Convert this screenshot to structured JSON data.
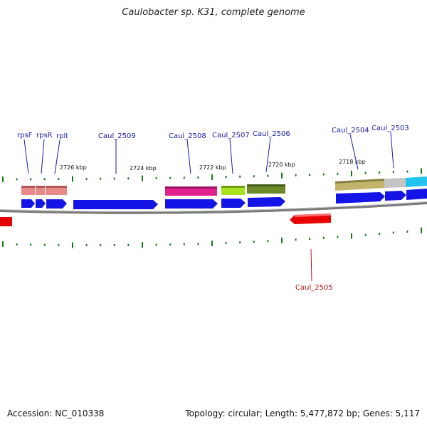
{
  "title": "Caulobacter sp. K31, complete genome",
  "footer": {
    "accession": "Accession: NC_010338",
    "summary": "Topology: circular; Length: 5,477,872 bp; Genes: 5,117"
  },
  "colors": {
    "cds": "#1414e6",
    "reverse_cds": "#e60000",
    "backbone": "#8a8a8a",
    "tick": "#1a7a1a",
    "gene_label": "#1a1aa8",
    "reverse_label": "#b81414"
  },
  "scale_labels": [
    {
      "kbp": 2726,
      "text": "2726 kbp"
    },
    {
      "kbp": 2724,
      "text": "2724 kbp"
    },
    {
      "kbp": 2722,
      "text": "2722 kbp"
    },
    {
      "kbp": 2720,
      "text": "2720 kbp"
    },
    {
      "kbp": 2718,
      "text": "2718 kbp"
    }
  ],
  "genes": [
    {
      "name": "rpsF",
      "label": "rpsF",
      "color": "#e88a8a"
    },
    {
      "name": "rpsR",
      "label": "rpsR",
      "color": "#e88a8a"
    },
    {
      "name": "rplI",
      "label": "rplI",
      "color": "#e88a8a"
    },
    {
      "name": "Caul_2509",
      "label": "Caul_2509",
      "color": null
    },
    {
      "name": "Caul_2508",
      "label": "Caul_2508",
      "color": "#e0228a"
    },
    {
      "name": "Caul_2507",
      "label": "Caul_2507",
      "color": "#a6e21e"
    },
    {
      "name": "Caul_2506",
      "label": "Caul_2506",
      "color": "#6a8a2a"
    },
    {
      "name": "Caul_2504",
      "label": "Caul_2504",
      "color": "#c2b46a"
    },
    {
      "name": "Caul_2503",
      "label": "Caul_2503",
      "color": "#c4c4c4"
    },
    {
      "name": "Caul_2505",
      "label": "Caul_2505",
      "color": null,
      "strand": "reverse"
    }
  ]
}
